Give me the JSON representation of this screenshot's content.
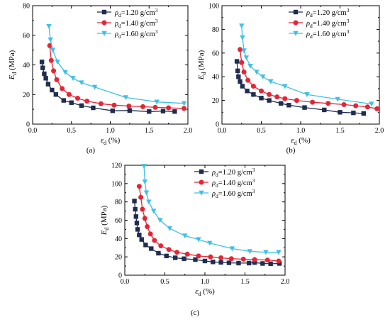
{
  "chart_data": [
    {
      "type": "line",
      "panel_label": "(a)",
      "xlabel": "εd (%)",
      "ylabel": "Ed (MPa)",
      "xlim": [
        0,
        2.0
      ],
      "ylim": [
        0,
        80
      ],
      "xticks": [
        0,
        0.5,
        1.0,
        1.5,
        2.0
      ],
      "xtick_labels": [
        "0.0",
        "0.5",
        "1.0",
        "1.5",
        "2.0"
      ],
      "yticks": [
        0,
        20,
        40,
        60,
        80
      ],
      "ytick_labels": [
        "0",
        "20",
        "40",
        "60",
        "80"
      ],
      "legend_position": "top-right",
      "series": [
        {
          "name": "ρd=1.20 g/cm3",
          "color": "#1f2d4f",
          "marker": "square",
          "x": [
            0.12,
            0.13,
            0.15,
            0.17,
            0.2,
            0.25,
            0.3,
            0.4,
            0.5,
            0.63,
            0.78,
            1.03,
            1.25,
            1.5,
            1.68,
            1.83
          ],
          "y": [
            42,
            38,
            34,
            31,
            27,
            23,
            20,
            16,
            14.5,
            12.5,
            11,
            9,
            9.2,
            8.5,
            8.8,
            8.5
          ]
        },
        {
          "name": "ρd=1.40 g/cm3",
          "color": "#e32636",
          "marker": "circle",
          "x": [
            0.22,
            0.24,
            0.27,
            0.31,
            0.38,
            0.47,
            0.58,
            0.7,
            0.88,
            1.05,
            1.24,
            1.42,
            1.58,
            1.75,
            1.95
          ],
          "y": [
            53,
            43,
            36,
            30,
            24,
            20,
            17.5,
            15.5,
            13.8,
            12.8,
            12.2,
            11.8,
            11.3,
            11.0,
            10.6
          ]
        },
        {
          "name": "ρd=1.60 g/cm3",
          "color": "#3ec0e8",
          "marker": "triangle-down",
          "x": [
            0.21,
            0.23,
            0.26,
            0.32,
            0.42,
            0.52,
            0.63,
            0.8,
            1.2,
            1.6,
            1.95
          ],
          "y": [
            66,
            57,
            50,
            42,
            35,
            31,
            28,
            25,
            18,
            15,
            14
          ]
        }
      ]
    },
    {
      "type": "line",
      "panel_label": "(b)",
      "xlabel": "εd (%)",
      "ylabel": "Ed (MPa)",
      "xlim": [
        0,
        2.0
      ],
      "ylim": [
        0,
        100
      ],
      "xticks": [
        0,
        0.5,
        1.0,
        1.5,
        2.0
      ],
      "xtick_labels": [
        "0.0",
        "0.5",
        "1.0",
        "1.5",
        "2.0"
      ],
      "yticks": [
        0,
        20,
        40,
        60,
        80,
        100
      ],
      "ytick_labels": [
        "0",
        "20",
        "40",
        "60",
        "80",
        "100"
      ],
      "legend_position": "top-right",
      "series": [
        {
          "name": "ρd=1.20 g/cm3",
          "color": "#1f2d4f",
          "marker": "square",
          "x": [
            0.19,
            0.2,
            0.21,
            0.23,
            0.26,
            0.32,
            0.4,
            0.5,
            0.6,
            0.75,
            0.85,
            1.05,
            1.3,
            1.5,
            1.67,
            1.8
          ],
          "y": [
            53,
            45,
            40,
            36,
            32,
            28,
            25,
            22,
            20,
            17.5,
            16,
            14,
            12,
            10,
            9.5,
            9
          ]
        },
        {
          "name": "ρd=1.40 g/cm3",
          "color": "#e32636",
          "marker": "circle",
          "x": [
            0.23,
            0.25,
            0.28,
            0.33,
            0.4,
            0.5,
            0.6,
            0.7,
            0.8,
            0.95,
            1.15,
            1.35,
            1.55,
            1.7,
            1.85,
            1.97
          ],
          "y": [
            63,
            52,
            44,
            37,
            32,
            28,
            25,
            23,
            21.5,
            20,
            18.5,
            17.5,
            16.5,
            15.5,
            14.5,
            13
          ]
        },
        {
          "name": "ρd=1.60 g/cm3",
          "color": "#3ec0e8",
          "marker": "triangle-down",
          "x": [
            0.25,
            0.26,
            0.28,
            0.31,
            0.36,
            0.44,
            0.52,
            0.62,
            0.8,
            1.08,
            1.47,
            1.9
          ],
          "y": [
            83,
            73,
            62,
            56,
            49,
            44,
            40,
            36,
            32,
            25,
            21,
            17
          ]
        }
      ]
    },
    {
      "type": "line",
      "panel_label": "(c)",
      "xlabel": "εd (%)",
      "ylabel": "Ed (MPa)",
      "xlim": [
        0,
        2.0
      ],
      "ylim": [
        0,
        120
      ],
      "xticks": [
        0,
        0.5,
        1.0,
        1.5,
        2.0
      ],
      "xtick_labels": [
        "0.0",
        "0.5",
        "1.0",
        "1.5",
        "2.0"
      ],
      "yticks": [
        0,
        20,
        40,
        60,
        80,
        100,
        120
      ],
      "ytick_labels": [
        "0",
        "20",
        "40",
        "60",
        "80",
        "100",
        "120"
      ],
      "legend_position": "top-right",
      "series": [
        {
          "name": "ρd=1.20 g/cm3",
          "color": "#1f2d4f",
          "marker": "square",
          "x": [
            0.12,
            0.13,
            0.14,
            0.15,
            0.16,
            0.18,
            0.21,
            0.26,
            0.33,
            0.42,
            0.52,
            0.63,
            0.74,
            0.88,
            1.0,
            1.1,
            1.2,
            1.3,
            1.42,
            1.55,
            1.62,
            1.72,
            1.82,
            1.93
          ],
          "y": [
            81,
            72,
            64,
            57,
            50,
            44,
            39,
            33,
            29,
            24,
            21,
            19,
            18,
            17,
            15.5,
            14.5,
            14,
            13.5,
            13.2,
            13.2,
            13.8,
            12.8,
            12.5,
            12.8
          ]
        },
        {
          "name": "ρd=1.40 g/cm3",
          "color": "#e32636",
          "marker": "circle",
          "x": [
            0.18,
            0.2,
            0.22,
            0.25,
            0.28,
            0.32,
            0.37,
            0.45,
            0.55,
            0.65,
            0.78,
            0.92,
            1.07,
            1.2,
            1.33,
            1.48,
            1.62,
            1.78,
            1.92
          ],
          "y": [
            97,
            85,
            72,
            62,
            53,
            45,
            38,
            32,
            28,
            25,
            23,
            21,
            20,
            19,
            18,
            17.5,
            17,
            16.5,
            15.5
          ]
        },
        {
          "name": "ρd=1.60 g/cm3",
          "color": "#3ec0e8",
          "marker": "triangle-down",
          "x": [
            0.24,
            0.25,
            0.27,
            0.3,
            0.36,
            0.44,
            0.56,
            0.75,
            0.92,
            1.06,
            1.34,
            1.56,
            1.76,
            1.92
          ],
          "y": [
            119,
            102,
            90,
            80,
            70,
            60,
            51,
            43,
            39,
            35,
            29,
            26,
            25,
            25
          ]
        }
      ]
    }
  ]
}
